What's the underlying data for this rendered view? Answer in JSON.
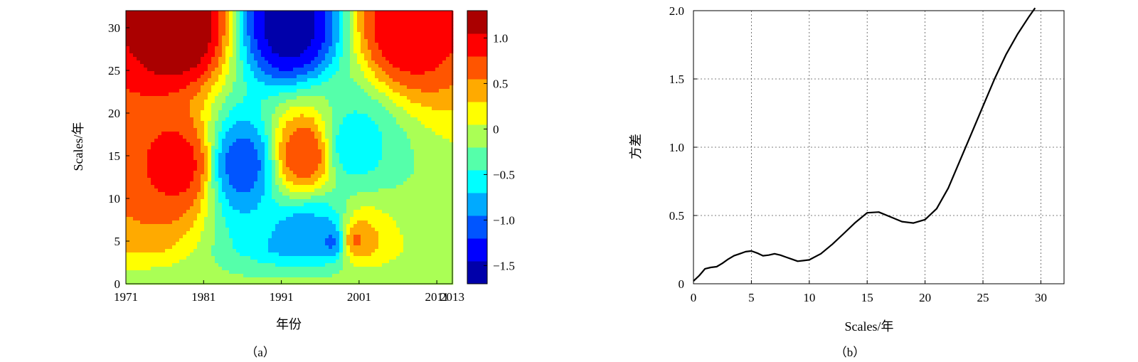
{
  "chart_data": [
    {
      "type": "heatmap",
      "panel_label": "（a）",
      "title": "",
      "xlabel": "年份",
      "ylabel": "Scales/年",
      "xlim": [
        1971,
        2013
      ],
      "ylim": [
        0,
        32
      ],
      "x_ticks": [
        1971,
        1981,
        1991,
        2001,
        2011,
        2013
      ],
      "x_tick_labels": [
        "1971",
        "1981",
        "1991",
        "2001",
        "2011",
        "2013"
      ],
      "y_ticks": [
        0,
        5,
        10,
        15,
        20,
        25,
        30
      ],
      "y_tick_labels": [
        "0",
        "5",
        "10",
        "15",
        "20",
        "25",
        "30"
      ],
      "colorbar": {
        "range": [
          -1.7,
          1.3
        ],
        "ticks": [
          1.0,
          0.5,
          0,
          -0.5,
          -1.0,
          -1.5
        ],
        "tick_labels": [
          "1.0",
          "0.5",
          "0",
          "−0.5",
          "−1.0",
          "−1.5"
        ],
        "colormap": "jet"
      },
      "field_features": [
        {
          "year": 1978,
          "scale": 30,
          "value": 1.3
        },
        {
          "year": 1978,
          "scale": 14,
          "value": 0.9
        },
        {
          "year": 1992,
          "scale": 30,
          "value": -1.6
        },
        {
          "year": 1986,
          "scale": 14,
          "value": -1.1
        },
        {
          "year": 1994,
          "scale": 15,
          "value": 0.8
        },
        {
          "year": 2007,
          "scale": 30,
          "value": 1.0
        },
        {
          "year": 2000,
          "scale": 16,
          "value": -0.6
        },
        {
          "year": 2000,
          "scale": 5,
          "value": 0.8
        },
        {
          "year": 1998,
          "scale": 5,
          "value": -1.2
        },
        {
          "year": 1994,
          "scale": 5,
          "value": -0.9
        }
      ]
    },
    {
      "type": "line",
      "panel_label": "（b）",
      "title": "",
      "xlabel": "Scales/年",
      "ylabel": "方差",
      "xlim": [
        0,
        32
      ],
      "ylim": [
        0,
        2.0
      ],
      "grid": true,
      "x_ticks": [
        0,
        5,
        10,
        15,
        20,
        25,
        30
      ],
      "x_tick_labels": [
        "0",
        "5",
        "10",
        "15",
        "20",
        "25",
        "30"
      ],
      "y_ticks": [
        0,
        0.5,
        1.0,
        1.5,
        2.0
      ],
      "y_tick_labels": [
        "0",
        "0.5",
        "1.0",
        "1.5",
        "2.0"
      ],
      "series": [
        {
          "x": [
            0,
            0.5,
            1,
            1.5,
            2,
            2.5,
            3,
            3.5,
            4,
            4.5,
            5,
            5.5,
            6,
            6.5,
            7,
            7.5,
            8,
            8.5,
            9,
            9.5,
            10,
            11,
            12,
            13,
            14,
            15,
            16,
            17,
            18,
            19,
            20,
            21,
            22,
            23,
            24,
            25,
            26,
            27,
            28,
            29,
            29.5
          ],
          "y": [
            0.02,
            0.06,
            0.11,
            0.12,
            0.125,
            0.15,
            0.18,
            0.205,
            0.22,
            0.235,
            0.24,
            0.225,
            0.205,
            0.21,
            0.22,
            0.21,
            0.195,
            0.18,
            0.165,
            0.17,
            0.175,
            0.22,
            0.29,
            0.37,
            0.45,
            0.52,
            0.525,
            0.49,
            0.455,
            0.445,
            0.47,
            0.55,
            0.7,
            0.9,
            1.1,
            1.3,
            1.5,
            1.68,
            1.83,
            1.96,
            2.02
          ],
          "color": "#000000"
        }
      ]
    }
  ]
}
